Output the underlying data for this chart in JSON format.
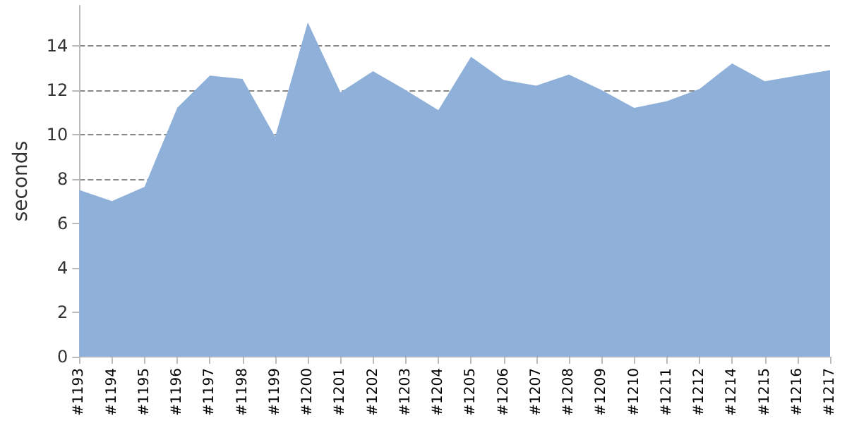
{
  "chart_data": {
    "type": "area",
    "ylabel": "seconds",
    "categories": [
      "#1193",
      "#1194",
      "#1195",
      "#1196",
      "#1197",
      "#1198",
      "#1199",
      "#1200",
      "#1201",
      "#1202",
      "#1203",
      "#1204",
      "#1205",
      "#1206",
      "#1207",
      "#1208",
      "#1209",
      "#1210",
      "#1211",
      "#1212",
      "#1214",
      "#1215",
      "#1216",
      "#1217"
    ],
    "series": [
      {
        "color": "#8eb0d9",
        "values": [
          7.5,
          7.0,
          7.65,
          11.2,
          12.65,
          12.5,
          9.9,
          15.05,
          11.9,
          12.85,
          12.0,
          11.1,
          13.5,
          12.45,
          12.2,
          12.7,
          12.0,
          11.2,
          11.5,
          12.05,
          13.2,
          12.4,
          12.65,
          12.9
        ]
      }
    ],
    "ylim": [
      0,
      15.8
    ],
    "yticks": [
      0,
      2,
      4,
      6,
      8,
      10,
      12,
      14
    ],
    "grid": "y"
  }
}
